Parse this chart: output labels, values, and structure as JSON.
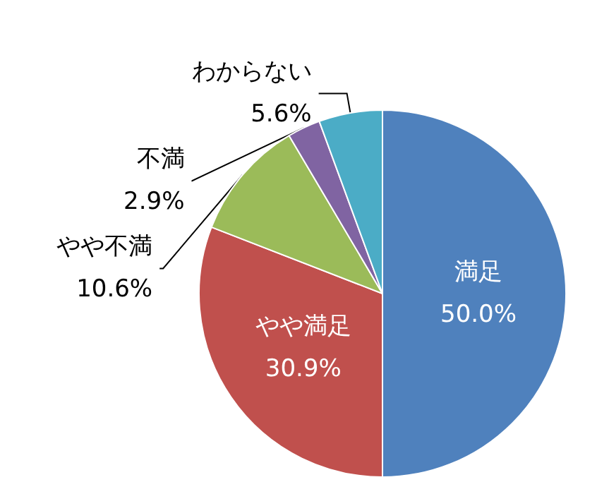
{
  "chart_data": {
    "type": "pie",
    "categories": [
      "満足",
      "やや満足",
      "やや不満",
      "不満",
      "わからない"
    ],
    "values": [
      50.0,
      30.9,
      10.6,
      2.9,
      5.6
    ],
    "value_labels": [
      "50.0%",
      "30.9%",
      "10.6%",
      "2.9%",
      "5.6%"
    ],
    "colors": [
      "#4f81bd",
      "#c0504d",
      "#9bbb59",
      "#8064a2",
      "#4bacc6"
    ],
    "legend": false
  }
}
